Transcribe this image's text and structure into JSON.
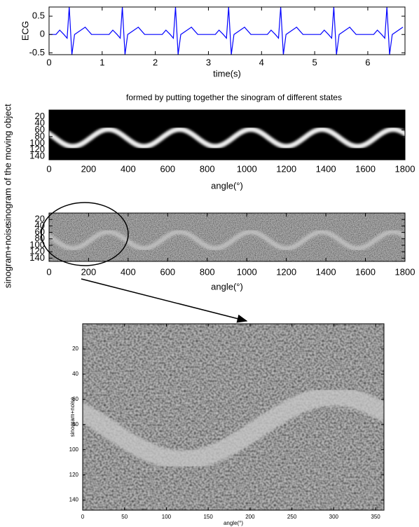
{
  "chart_data": [
    {
      "type": "line",
      "ylabel": "ECG",
      "xlabel": "time(s)",
      "xlim": [
        0,
        6.7
      ],
      "ylim": [
        -0.55,
        0.75
      ],
      "xticks": [
        0,
        1,
        2,
        3,
        4,
        5,
        6
      ],
      "yticks": [
        -0.5,
        0,
        0.5
      ],
      "series": [
        {
          "color": "#0000ff",
          "x": [
            0,
            0.13,
            0.2,
            0.28,
            0.34,
            0.38,
            0.43,
            0.48,
            0.68,
            0.8,
            1.13,
            1.2,
            1.28,
            1.34,
            1.38,
            1.43,
            1.48,
            1.68,
            1.8,
            2.13,
            2.2,
            2.28,
            2.34,
            2.38,
            2.43,
            2.48,
            2.68,
            2.8,
            3.13,
            3.2,
            3.28,
            3.34,
            3.38,
            3.43,
            3.48,
            3.68,
            3.8,
            4.11,
            4.18,
            4.26,
            4.32,
            4.36,
            4.41,
            4.46,
            4.66,
            4.78,
            5.11,
            5.18,
            5.26,
            5.32,
            5.36,
            5.41,
            5.46,
            5.66,
            5.78,
            6.11,
            6.18,
            6.26,
            6.32,
            6.36,
            6.41,
            6.46,
            6.66
          ],
          "values": [
            0,
            0,
            0.12,
            0,
            -0.1,
            0.75,
            -0.55,
            0,
            0.2,
            0,
            0,
            0.12,
            0,
            -0.1,
            0.75,
            -0.55,
            0,
            0.2,
            0,
            0,
            0.12,
            0,
            -0.1,
            0.75,
            -0.55,
            0,
            0.2,
            0,
            0,
            0.12,
            0,
            -0.1,
            0.75,
            -0.55,
            0,
            0.2,
            0,
            0,
            0.12,
            0,
            -0.1,
            0.75,
            -0.55,
            0,
            0.2,
            0,
            0,
            0.12,
            0,
            -0.1,
            0.75,
            -0.55,
            0,
            0.2,
            0,
            0,
            0.12,
            0,
            -0.1,
            0.75,
            -0.55,
            0,
            0.2
          ]
        }
      ]
    },
    {
      "type": "image",
      "title": "formed by putting together the sinogram of different states",
      "ylabel": "sinogram of the moving object",
      "xlabel": "angle(°)",
      "noise": false,
      "y_inverted": true,
      "xlim": [
        0,
        1800
      ],
      "ylim": [
        0,
        150
      ],
      "xticks": [
        0,
        200,
        400,
        600,
        800,
        1000,
        1200,
        1400,
        1600,
        1800
      ],
      "yticks": [
        20,
        40,
        60,
        80,
        100,
        120,
        140
      ]
    },
    {
      "type": "image",
      "ylabel": "sinogram+noise",
      "xlabel": "angle(°)",
      "noise": true,
      "y_inverted": true,
      "xlim": [
        0,
        1800
      ],
      "ylim": [
        0,
        150
      ],
      "xticks": [
        0,
        200,
        400,
        600,
        800,
        1000,
        1200,
        1400,
        1600,
        1800
      ],
      "yticks": [
        20,
        40,
        60,
        80,
        100,
        120,
        140
      ]
    },
    {
      "type": "image",
      "ylabel": "sinogram+noise",
      "xlabel": "angle(°)",
      "noise": true,
      "y_inverted": true,
      "xlim": [
        0,
        360
      ],
      "ylim": [
        0,
        148
      ],
      "xticks": [
        0,
        50,
        100,
        150,
        200,
        250,
        300,
        350
      ],
      "yticks": [
        20,
        40,
        60,
        80,
        100,
        120,
        140
      ]
    }
  ]
}
